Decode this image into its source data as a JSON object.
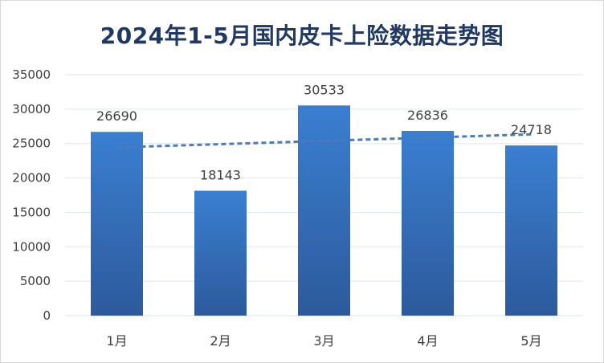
{
  "chart_data": {
    "type": "bar",
    "title": "2024年1-5月国内皮卡上险数据走势图",
    "categories": [
      "1月",
      "2月",
      "3月",
      "4月",
      "5月"
    ],
    "values": [
      26690,
      18143,
      30533,
      26836,
      24718
    ],
    "ylim": [
      0,
      35000
    ],
    "yticks": [
      0,
      5000,
      10000,
      15000,
      20000,
      25000,
      30000,
      35000
    ],
    "grid": true,
    "legend": "none",
    "trendline": {
      "type": "linear",
      "style": "dashed",
      "color": "#4a7bbd"
    },
    "colors": {
      "bar_top": "#3a7fd1",
      "bar_bottom": "#2d5a9c",
      "title": "#1f3864",
      "grid": "#dde6f0"
    }
  }
}
